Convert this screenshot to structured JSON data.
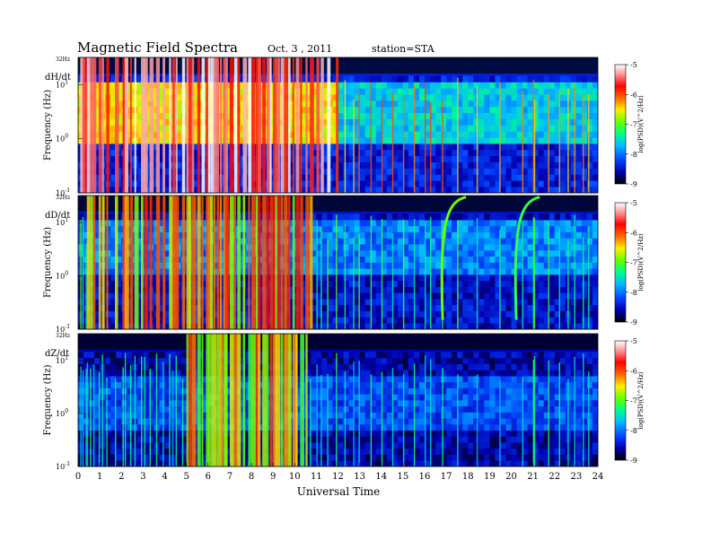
{
  "header": {
    "title": "Magnetic  Field  Spectra",
    "date": "Oct. 3  , 2011",
    "station": "station=STA"
  },
  "chart_data": {
    "type": "heatmap",
    "xlabel": "Universal Time",
    "x_ticks": [
      "0",
      "1",
      "2",
      "3",
      "4",
      "5",
      "6",
      "7",
      "8",
      "9",
      "10",
      "11",
      "12",
      "13",
      "14",
      "15",
      "16",
      "17",
      "18",
      "19",
      "20",
      "21",
      "22",
      "23",
      "24"
    ],
    "xlim": [
      0,
      24
    ],
    "ylim_hz": [
      0.1,
      32
    ],
    "y_scale": "log",
    "colorbar": {
      "label": "log(PSD)(V^2/Hz)",
      "ticks": [
        "-5",
        "-6",
        "-7",
        "-8",
        "-9"
      ],
      "range": [
        -9,
        -5
      ],
      "colors": [
        "#000000",
        "#0000b0",
        "#0044ff",
        "#00bbff",
        "#00ff88",
        "#66ff00",
        "#ffee00",
        "#ff6600",
        "#ff0000",
        "#ff9999",
        "#ffffff"
      ]
    },
    "panels": [
      {
        "label": "dH/dt",
        "ylabel": "Frequency  (Hz)",
        "top_label": "32Hz",
        "ytick_labels": [
          "10^1",
          "10^0",
          "10^-1"
        ],
        "background_level": -8.4,
        "band_level": -6.6,
        "band_freq_hz": [
          0.8,
          12
        ],
        "band_fade_after_ut": 12,
        "storm_intervals_ut": [
          [
            0,
            12
          ]
        ],
        "activity_level": -6.0
      },
      {
        "label": "dD/dt",
        "ylabel": "Frequency  (Hz)",
        "top_label": "32Hz",
        "ytick_labels": [
          "10^1",
          "10^0",
          "10^-1"
        ],
        "background_level": -8.5,
        "band_level": -8.0,
        "band_freq_hz": [
          1,
          10
        ],
        "band_fade_after_ut": 24,
        "storm_intervals_ut": [
          [
            0.4,
            10.8
          ]
        ],
        "activity_level": -7.0,
        "features": [
          {
            "type": "arc",
            "ut_center": 17.0,
            "level": -7.0
          },
          {
            "type": "arc",
            "ut_center": 20.4,
            "level": -7.2
          }
        ]
      },
      {
        "label": "dZ/dt",
        "ylabel": "Frequency  (Hz)",
        "top_label": "32Hz",
        "ytick_labels": [
          "10^1",
          "10^0",
          "10^-1"
        ],
        "background_level": -8.6,
        "band_level": -8.2,
        "band_freq_hz": [
          0.5,
          5
        ],
        "band_fade_after_ut": 24,
        "storm_intervals_ut": [
          [
            5,
            10.5
          ]
        ],
        "activity_level": -7.2
      }
    ],
    "spikes_ut": [
      0.1,
      0.2,
      0.35,
      0.4,
      0.55,
      0.7,
      0.95,
      1.1,
      1.3,
      1.7,
      2.05,
      2.15,
      2.4,
      2.6,
      2.9,
      3.05,
      3.3,
      3.6,
      3.9,
      4.2,
      4.35,
      4.5,
      4.8,
      5.0,
      5.1,
      5.25,
      5.5,
      5.7,
      5.9,
      6.0,
      6.1,
      6.25,
      6.4,
      6.55,
      6.7,
      6.8,
      7.0,
      7.2,
      7.35,
      7.6,
      7.85,
      8.0,
      8.2,
      8.3,
      8.5,
      8.7,
      8.85,
      9.0,
      9.1,
      9.2,
      9.35,
      9.5,
      9.7,
      9.9,
      10.05,
      10.25,
      10.5,
      10.7,
      11.0,
      11.2,
      11.5,
      11.9,
      12.3,
      12.7,
      12.95,
      13.5,
      14.0,
      14.5,
      15.0,
      15.5,
      16.0,
      16.25,
      16.8,
      17.5,
      18.4,
      19.45,
      20.5,
      21.0,
      21.05,
      21.7,
      22.2,
      22.6,
      22.9,
      23.3,
      23.55
    ]
  }
}
